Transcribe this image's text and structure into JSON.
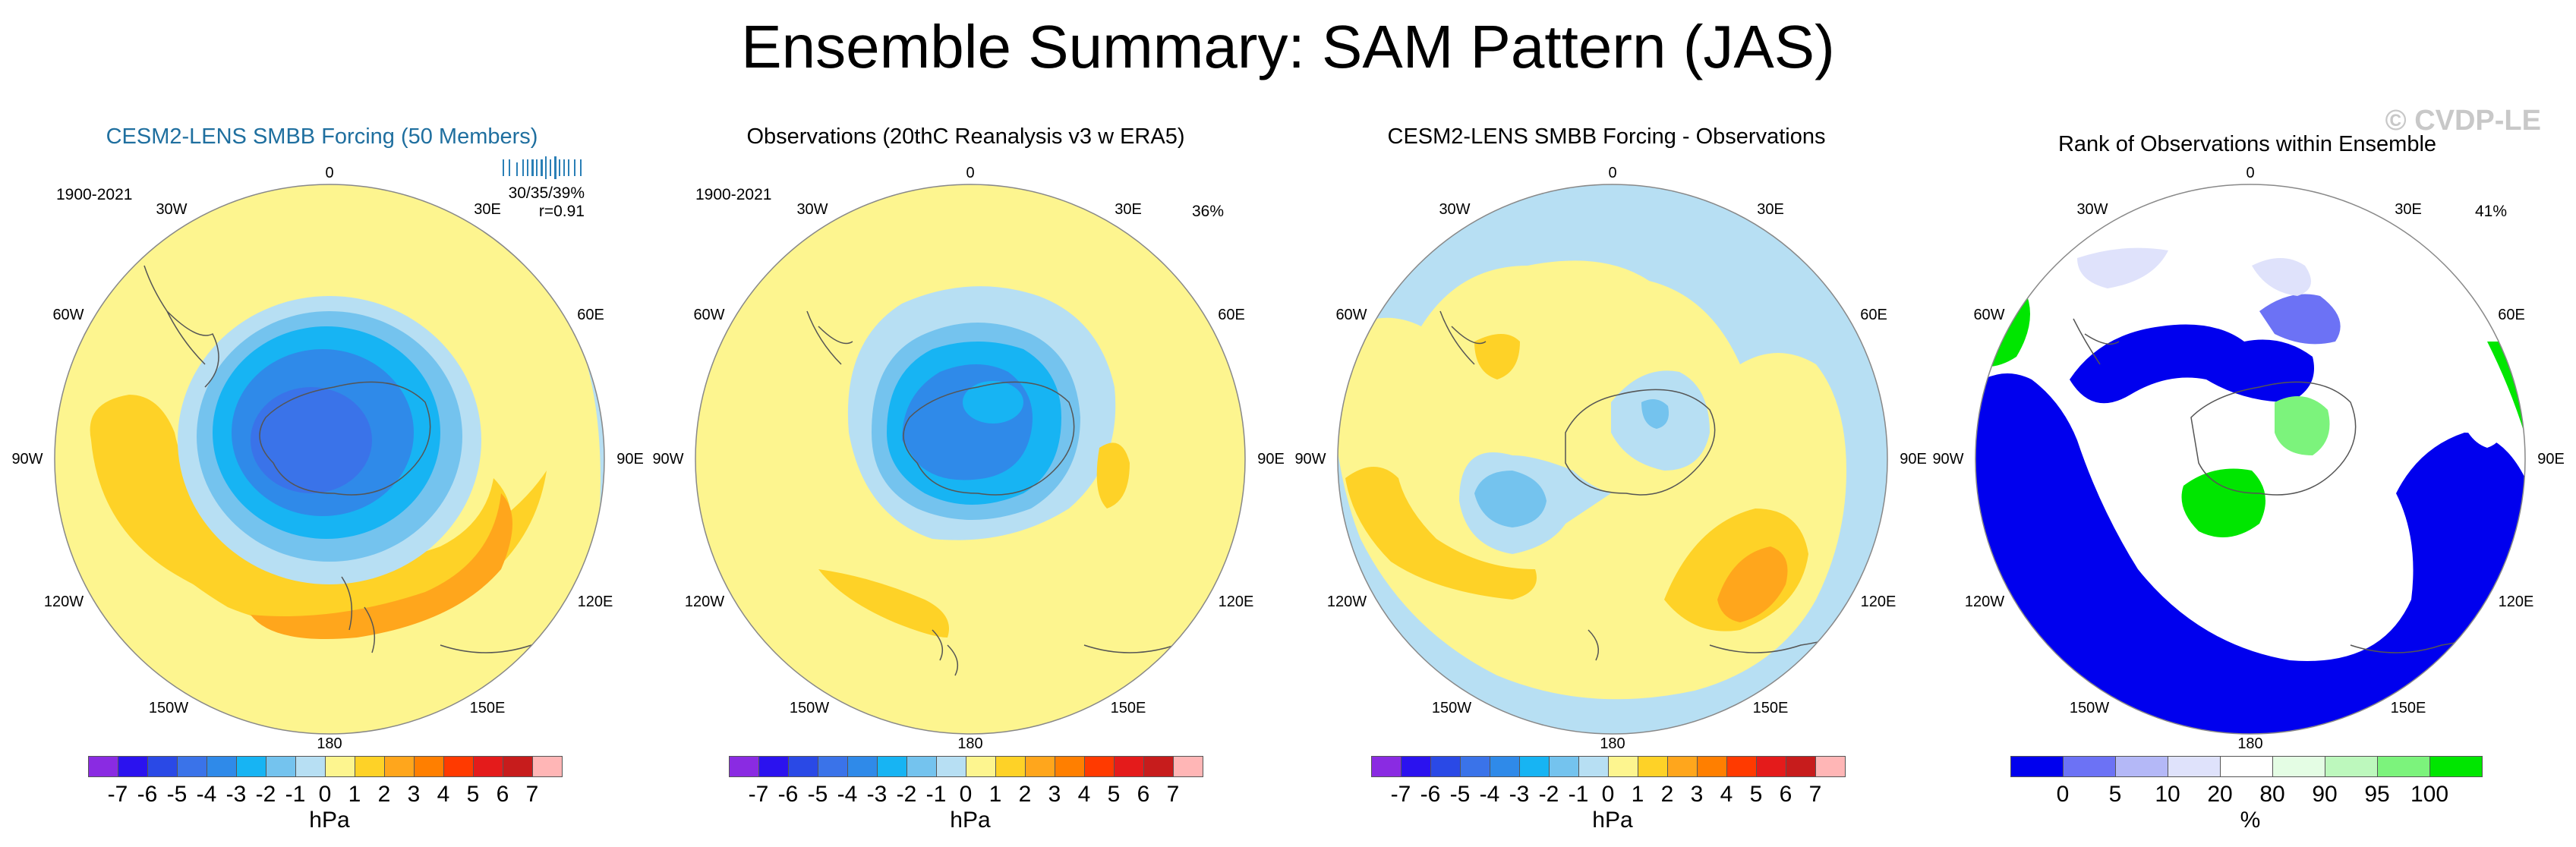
{
  "title": "Ensemble Summary: SAM Pattern (JAS)",
  "watermark": "© CVDP-LE",
  "colors": {
    "land_lines": "#555555",
    "accent_title": "#1f6f9f",
    "diverging_scale": [
      "#8a2be2",
      "#2b12ef",
      "#2a49e6",
      "#3a73e9",
      "#2f8ae9",
      "#17b4f3",
      "#74c3ee",
      "#b7dff3",
      "#fdf58f",
      "#fed227",
      "#ffa61c",
      "#ff7f00",
      "#ff3a00",
      "#e41b1b",
      "#c71c1c",
      "#ffb6b6"
    ],
    "rank_scale": [
      "#0000ee",
      "#6c72f5",
      "#b4b8f7",
      "#dfe2fb",
      "#ffffff",
      "#e4fde4",
      "#bdf8bd",
      "#7cf37c",
      "#00e600"
    ]
  },
  "common": {
    "lon_labels": {
      "top": "0",
      "lower": "180",
      "l30": "30W",
      "r30": "30E",
      "l60": "60W",
      "r60": "60E",
      "l90": "90W",
      "r90": "90E",
      "l120": "120W",
      "r120": "120E",
      "l150": "150W",
      "r150": "150E"
    }
  },
  "panels": [
    {
      "title": "CESM2-LENS SMBB Forcing (50 Members)",
      "period": "1900-2021",
      "stat_pct": "30/35/39%",
      "stat_r": "r=0.91",
      "colorbar": {
        "ticks": [
          "-7",
          "-6",
          "-5",
          "-4",
          "-3",
          "-2",
          "-1",
          "0",
          "1",
          "2",
          "3",
          "4",
          "5",
          "6",
          "7"
        ],
        "unit": "hPa"
      }
    },
    {
      "title": "Observations (20thC Reanalysis v3 w ERA5)",
      "period": "1900-2021",
      "stat_pct": "36%",
      "colorbar": {
        "ticks": [
          "-7",
          "-6",
          "-5",
          "-4",
          "-3",
          "-2",
          "-1",
          "0",
          "1",
          "2",
          "3",
          "4",
          "5",
          "6",
          "7"
        ],
        "unit": "hPa"
      }
    },
    {
      "title": "CESM2-LENS SMBB Forcing - Observations",
      "colorbar": {
        "ticks": [
          "-7",
          "-6",
          "-5",
          "-4",
          "-3",
          "-2",
          "-1",
          "0",
          "1",
          "2",
          "3",
          "4",
          "5",
          "6",
          "7"
        ],
        "unit": "hPa"
      }
    },
    {
      "title": "Rank of Observations within Ensemble",
      "stat_pct": "41%",
      "colorbar": {
        "ticks": [
          "0",
          "5",
          "10",
          "20",
          "80",
          "90",
          "95",
          "100"
        ],
        "unit": "%"
      }
    }
  ]
}
